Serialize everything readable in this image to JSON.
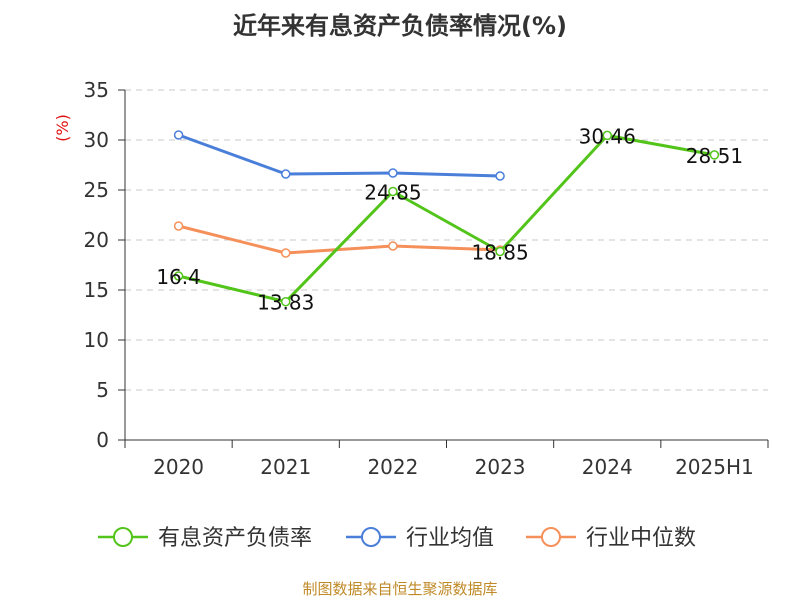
{
  "chart_data": {
    "type": "line",
    "title": "近年来有息资产负债率情况(%)",
    "unit_label": "(%)",
    "categories": [
      "2020",
      "2021",
      "2022",
      "2023",
      "2024",
      "2025H1"
    ],
    "ylim": [
      0,
      35
    ],
    "yticks": [
      0,
      5,
      10,
      15,
      20,
      25,
      30,
      35
    ],
    "grid": true,
    "legend_position": "bottom",
    "series": [
      {
        "name": "有息资产负债率",
        "color": "#52c41a",
        "values": [
          16.4,
          13.83,
          24.85,
          18.85,
          30.46,
          28.51
        ],
        "data_labels": [
          "16.4",
          "13.83",
          "24.85",
          "18.85",
          "30.46",
          "28.51"
        ]
      },
      {
        "name": "行业均值",
        "color": "#4a7fd9",
        "values": [
          30.5,
          26.6,
          26.7,
          26.4,
          null,
          null
        ]
      },
      {
        "name": "行业中位数",
        "color": "#f5905a",
        "values": [
          21.4,
          18.7,
          19.4,
          19.0,
          null,
          null
        ]
      }
    ]
  },
  "source": "制图数据来自恒生聚源数据库"
}
